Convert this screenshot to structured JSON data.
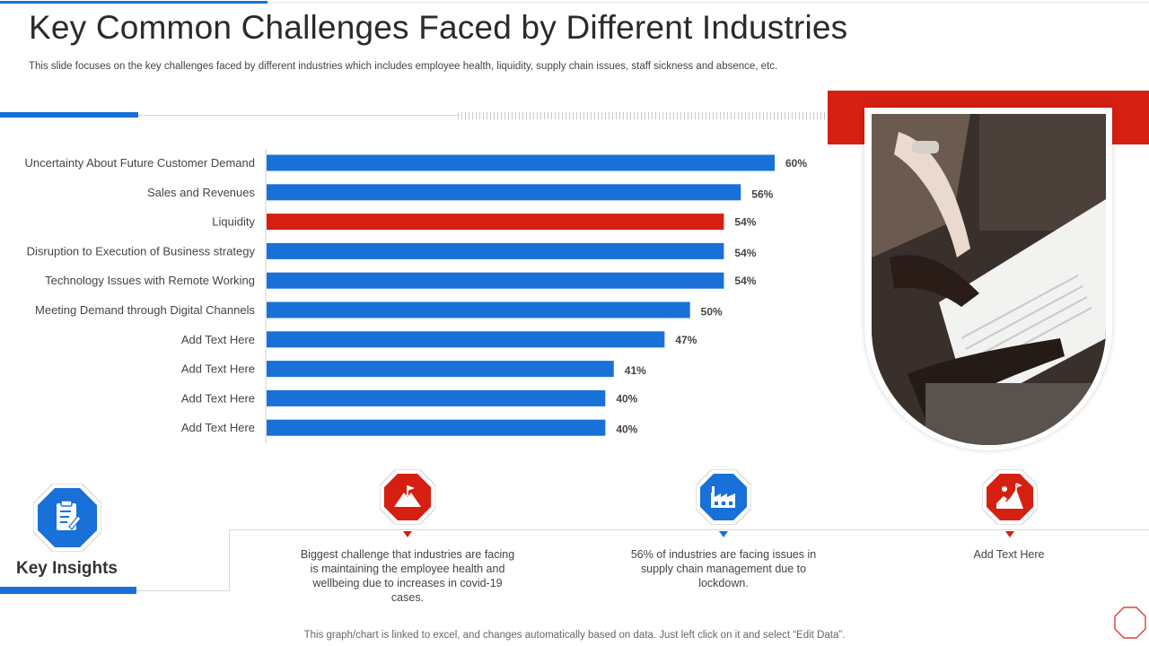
{
  "header": {
    "title": "Key Common Challenges Faced by Different Industries",
    "subtitle": "This slide focuses on the key challenges faced by different industries which includes employee health, liquidity, supply chain issues, staff sickness and absence, etc."
  },
  "colors": {
    "primary": "#1870d8",
    "accent": "#d51f10"
  },
  "chart_data": {
    "type": "bar",
    "orientation": "horizontal",
    "categories": [
      "Uncertainty About Future Customer Demand",
      "Sales and Revenues",
      "Liquidity",
      "Disruption to Execution of Business strategy",
      "Technology Issues with Remote Working",
      "Meeting Demand through Digital Channels",
      "Add Text Here",
      "Add Text Here",
      "Add Text Here",
      "Add Text Here"
    ],
    "values": [
      60,
      56,
      54,
      54,
      54,
      50,
      47,
      41,
      40,
      40
    ],
    "value_labels": [
      "60%",
      "56%",
      "54%",
      "54%",
      "54%",
      "50%",
      "47%",
      "41%",
      "40%",
      "40%"
    ],
    "highlight_index": 2,
    "xlim": [
      0,
      60
    ],
    "grid": false,
    "legend": "none"
  },
  "insights": {
    "title": "Key Insights",
    "header_icon": "clipboard-icon",
    "items": [
      {
        "icon": "mountain-flag-icon",
        "color": "#d51f10",
        "text": "Biggest challenge that industries are facing is maintaining the employee health and wellbeing due to increases in covid-19  cases."
      },
      {
        "icon": "factory-icon",
        "color": "#1870d8",
        "text": "56% of industries are facing issues in supply chain management  due to lockdown."
      },
      {
        "icon": "climber-icon",
        "color": "#d51f10",
        "text": "Add Text Here"
      }
    ]
  },
  "footer": {
    "note": "This graph/chart is linked to excel,  and changes automatically based on data. Just left click on it and select “Edit Data”."
  }
}
